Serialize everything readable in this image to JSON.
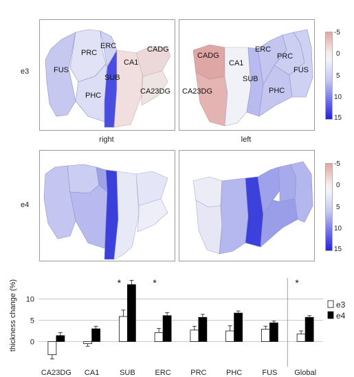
{
  "rows": [
    "e3",
    "e4"
  ],
  "hemispheres": [
    "right",
    "left"
  ],
  "maps": {
    "e3_right_labels": [
      "FUS",
      "PRC",
      "ERC",
      "SUB",
      "PHC",
      "CA1",
      "CADG",
      "CA23DG"
    ],
    "e3_left_labels": [
      "CADG",
      "CA1",
      "ERC",
      "PRC",
      "CA23DG",
      "SUB",
      "PHC",
      "FUS"
    ]
  },
  "colorbar": {
    "ticks": [
      "-5",
      "0",
      "5",
      "10",
      "15"
    ],
    "values": [
      -5,
      0,
      5,
      10,
      15
    ],
    "colors": {
      "neg": "#d98a86",
      "zero": "#f5f5fb",
      "pos": "#2323d8"
    }
  },
  "chart_data": {
    "type": "bar",
    "ylabel": "thickness change (%)",
    "ylim": [
      -3,
      14
    ],
    "yticks": [
      0,
      5,
      10
    ],
    "categories": [
      "CA23DG",
      "CA1",
      "SUB",
      "ERC",
      "PRC",
      "PHC",
      "FUS",
      "Global"
    ],
    "series": [
      {
        "name": "e3",
        "color": "#ffffff",
        "values": [
          -3.1,
          -0.5,
          5.9,
          2.1,
          2.7,
          2.5,
          2.9,
          1.8
        ],
        "errors": [
          1.0,
          0.6,
          1.5,
          1.0,
          0.9,
          1.2,
          0.7,
          0.7
        ]
      },
      {
        "name": "e4",
        "color": "#000000",
        "values": [
          1.4,
          3.0,
          13.4,
          6.1,
          5.7,
          6.7,
          4.4,
          5.7
        ],
        "errors": [
          0.7,
          0.6,
          1.0,
          0.7,
          0.7,
          0.5,
          0.4,
          0.4
        ]
      }
    ],
    "significance": [
      "",
      "",
      "*",
      "*",
      "",
      "",
      "",
      "*"
    ],
    "grid": true,
    "legend": "right"
  }
}
